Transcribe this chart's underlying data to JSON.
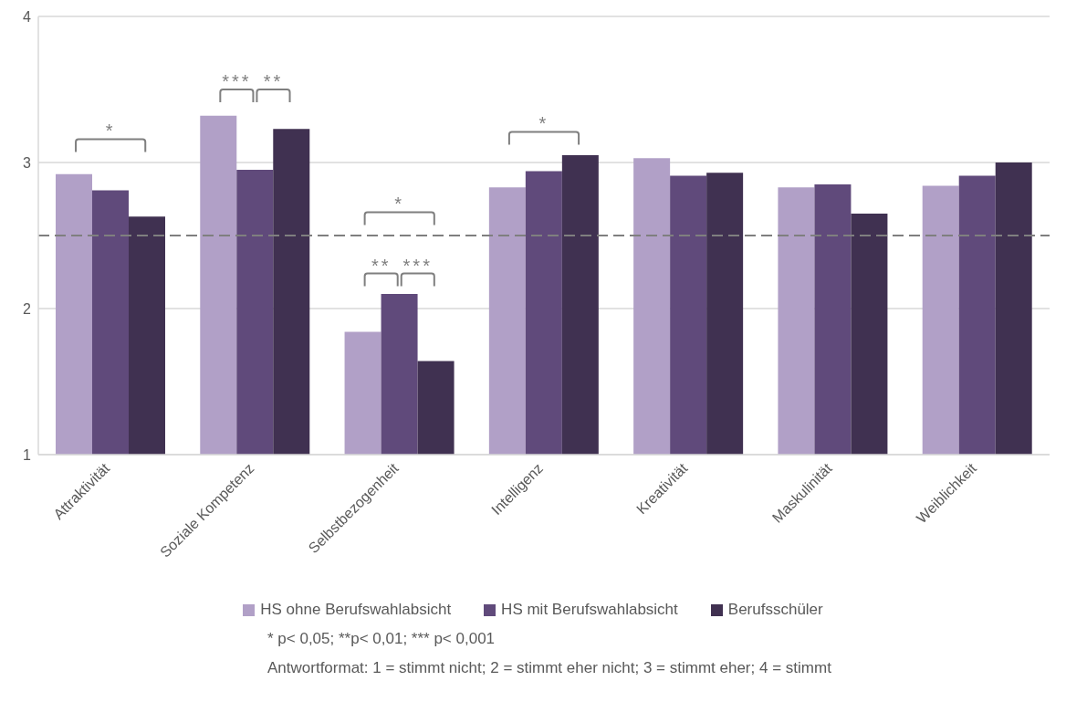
{
  "chart_data": {
    "type": "bar",
    "categories": [
      "Attraktivität",
      "Soziale Kompetenz",
      "Selbstbezogenheit",
      "Intelligenz",
      "Kreativität",
      "Maskulinität",
      "Weiblichkeit"
    ],
    "series": [
      {
        "name": "HS ohne Berufswahlabsicht",
        "color": "#b1a0c7",
        "values": [
          2.92,
          3.32,
          1.84,
          2.83,
          3.03,
          2.83,
          2.84
        ]
      },
      {
        "name": "HS mit Berufswahlabsicht",
        "color": "#604a7b",
        "values": [
          2.81,
          2.95,
          2.1,
          2.94,
          2.91,
          2.85,
          2.91
        ]
      },
      {
        "name": "Berufsschüler",
        "color": "#403151",
        "values": [
          2.63,
          3.23,
          1.64,
          3.05,
          2.93,
          2.65,
          3.0
        ]
      }
    ],
    "ylim": [
      1,
      4
    ],
    "yticks": [
      1,
      2,
      3,
      4
    ],
    "grid": "y",
    "legend": "bottom",
    "ref_lines": [
      {
        "axis": "y",
        "value": 2.5,
        "color": "#7f7f7f",
        "line_style": "dashed"
      }
    ],
    "annotations": [
      "*",
      "***",
      "**",
      "*",
      "**",
      "***",
      "*",
      "* p< 0,05; **p< 0,01; *** p< 0,001",
      "Antwortformat: 1 = stimmt nicht; 2 = stimmt eher nicht; 3 = stimmt eher; 4 = stimmt"
    ]
  }
}
